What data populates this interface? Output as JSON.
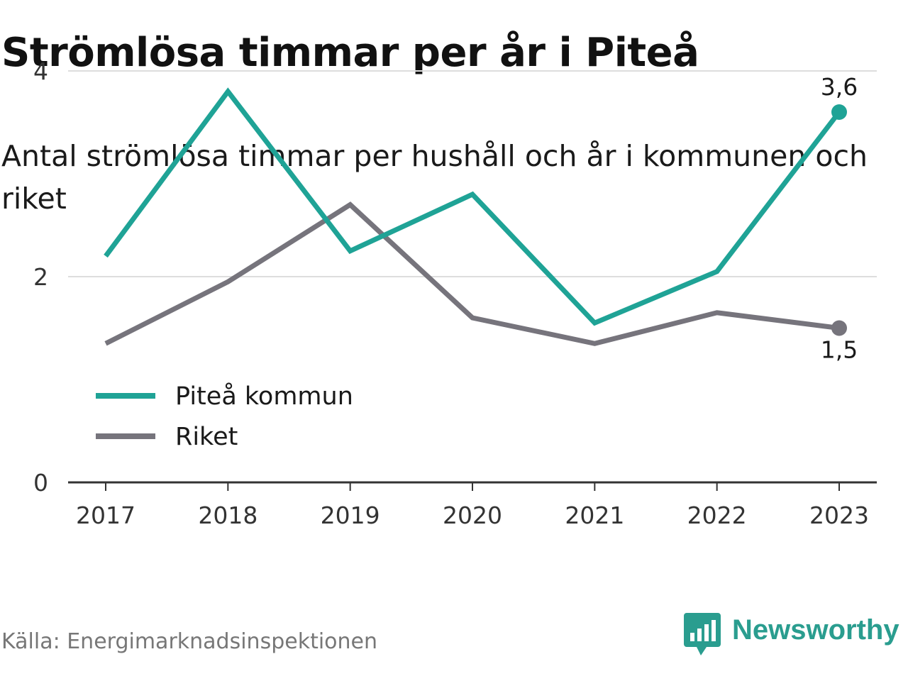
{
  "title": "Strömlösa timmar per år i Piteå",
  "subtitle": "Antal strömlösa timmar per hushåll och år i kommunen och riket",
  "source": "Källa: Energimarknadsinspektionen",
  "brand": {
    "name": "Newsworthy",
    "color": "#2a9d8f",
    "icon": "newsworthy-logo-icon"
  },
  "chart_data": {
    "type": "line",
    "title": "Strömlösa timmar per år i Piteå",
    "subtitle": "Antal strömlösa timmar per hushåll och år i kommunen och riket",
    "categories": [
      "2017",
      "2018",
      "2019",
      "2020",
      "2021",
      "2022",
      "2023"
    ],
    "ylim": [
      0,
      4.2
    ],
    "yticks": [
      0,
      2,
      4
    ],
    "grid": true,
    "legend_position": "left",
    "series": [
      {
        "name": "Piteå kommun",
        "color": "#1fa396",
        "values": [
          2.2,
          3.8,
          2.25,
          2.8,
          1.55,
          2.05,
          3.6
        ]
      },
      {
        "name": "Riket",
        "color": "#76747c",
        "values": [
          1.35,
          1.95,
          2.7,
          1.6,
          1.35,
          1.65,
          1.5
        ]
      }
    ],
    "end_labels": [
      "3,6",
      "1,5"
    ]
  }
}
